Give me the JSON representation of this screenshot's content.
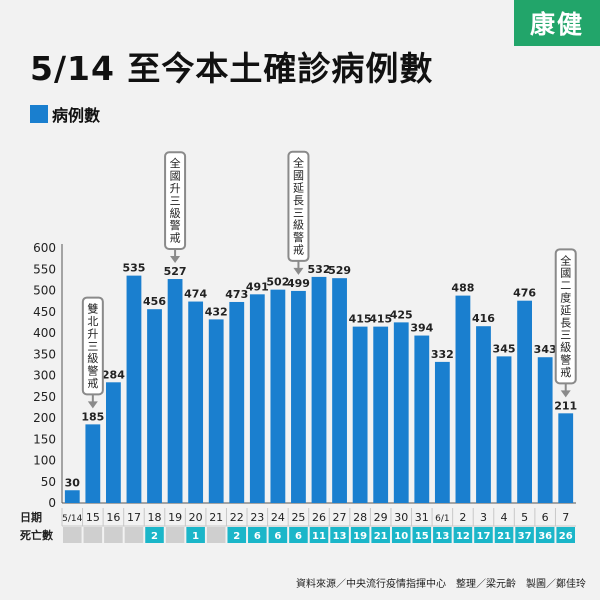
{
  "title": "5/14 至今本土確診病例數",
  "logo_text": "康健",
  "source_text": "資料來源／中央流行疫情指揮中心　整理／梁元齡　製圖／鄭佳玲",
  "colors": {
    "bar": "#1a7fcf",
    "teal": "#1bb6c9",
    "gray": "#cfcfcf",
    "callout_border": "#8a8a8a",
    "logo_bg": "#22a56a"
  },
  "chart_data": {
    "type": "bar",
    "title": "5/14 至今本土確診病例數",
    "categories": [
      "5/14",
      "15",
      "16",
      "17",
      "18",
      "19",
      "20",
      "21",
      "22",
      "23",
      "24",
      "25",
      "26",
      "27",
      "28",
      "29",
      "30",
      "31",
      "6/1",
      "2",
      "3",
      "4",
      "5",
      "6",
      "7"
    ],
    "series": [
      {
        "name": "病例數",
        "values": [
          30,
          185,
          284,
          535,
          456,
          527,
          474,
          432,
          473,
          491,
          502,
          499,
          532,
          529,
          415,
          415,
          425,
          394,
          332,
          488,
          416,
          345,
          476,
          343,
          211
        ]
      }
    ],
    "ylim": [
      0,
      600
    ],
    "yticks": [
      0,
      50,
      100,
      150,
      200,
      250,
      300,
      350,
      400,
      450,
      500,
      550,
      600
    ],
    "grid": false,
    "legend": "top-left",
    "row_labels": {
      "date": "日期",
      "deaths": "死亡數"
    },
    "deaths": [
      "",
      "",
      "",
      "",
      "2",
      "",
      "1",
      "",
      "2",
      "6",
      "6",
      "6",
      "11",
      "13",
      "19",
      "21",
      "10",
      "15",
      "13",
      "12",
      "17",
      "21",
      "37",
      "36",
      "26"
    ],
    "annotations": [
      {
        "category_index": 1,
        "text": "雙北升三級警戒"
      },
      {
        "category_index": 5,
        "text": "全國升三級警戒"
      },
      {
        "category_index": 11,
        "text": "全國延長三級警戒"
      },
      {
        "category_index": 24,
        "text": "全國二度延長三級警戒"
      }
    ]
  }
}
